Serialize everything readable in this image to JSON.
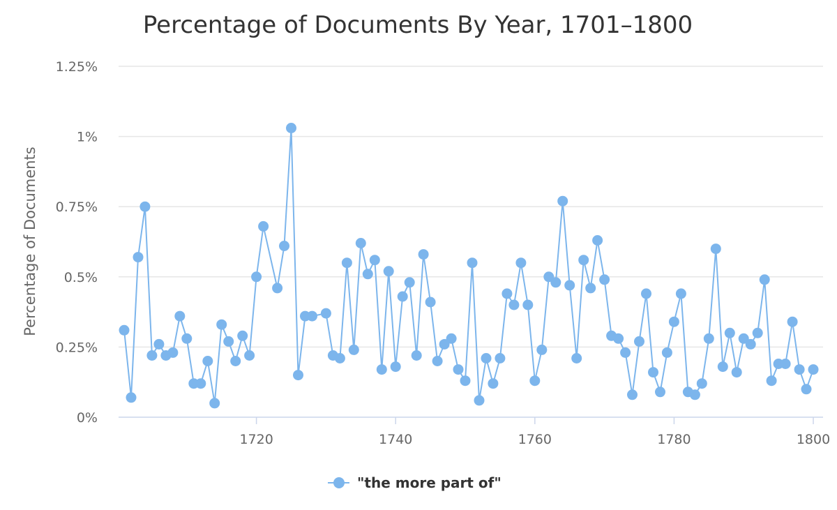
{
  "chart_data": {
    "type": "line",
    "title": "Percentage of Documents By Year, 1701–1800",
    "ylabel": "Percentage of Documents",
    "xlabel": "",
    "ylim": [
      0,
      1.25
    ],
    "xlim": [
      1701,
      1800
    ],
    "y_ticks": [
      "0%",
      "0.25%",
      "0.5%",
      "0.75%",
      "1%",
      "1.25%"
    ],
    "x_ticks": [
      "1720",
      "1740",
      "1760",
      "1780",
      "1800"
    ],
    "grid": true,
    "legend_position": "bottom",
    "line_color": "#7cb5ec",
    "series": [
      {
        "name": "\"the more part of\"",
        "x": [
          1701,
          1702,
          1703,
          1704,
          1705,
          1706,
          1707,
          1708,
          1709,
          1710,
          1711,
          1712,
          1713,
          1714,
          1715,
          1716,
          1717,
          1718,
          1719,
          1720,
          1721,
          1723,
          1724,
          1725,
          1726,
          1727,
          1728,
          1730,
          1731,
          1732,
          1733,
          1734,
          1735,
          1736,
          1737,
          1738,
          1739,
          1740,
          1741,
          1742,
          1743,
          1744,
          1745,
          1746,
          1747,
          1748,
          1749,
          1750,
          1751,
          1752,
          1753,
          1754,
          1755,
          1756,
          1757,
          1758,
          1759,
          1760,
          1761,
          1762,
          1763,
          1764,
          1765,
          1766,
          1767,
          1768,
          1769,
          1770,
          1771,
          1772,
          1773,
          1774,
          1775,
          1776,
          1777,
          1778,
          1779,
          1780,
          1781,
          1782,
          1783,
          1784,
          1785,
          1786,
          1787,
          1788,
          1789,
          1790,
          1791,
          1792,
          1793,
          1794,
          1795,
          1796,
          1797,
          1798,
          1799,
          1800
        ],
        "values": [
          0.31,
          0.07,
          0.57,
          0.75,
          0.22,
          0.26,
          0.22,
          0.23,
          0.36,
          0.28,
          0.12,
          0.12,
          0.2,
          0.05,
          0.33,
          0.27,
          0.2,
          0.29,
          0.22,
          0.5,
          0.68,
          0.46,
          0.61,
          1.03,
          0.15,
          0.36,
          0.36,
          0.37,
          0.22,
          0.21,
          0.55,
          0.24,
          0.62,
          0.51,
          0.56,
          0.17,
          0.52,
          0.18,
          0.43,
          0.48,
          0.22,
          0.58,
          0.41,
          0.2,
          0.26,
          0.28,
          0.17,
          0.13,
          0.55,
          0.06,
          0.21,
          0.12,
          0.21,
          0.44,
          0.4,
          0.55,
          0.4,
          0.13,
          0.24,
          0.5,
          0.48,
          0.77,
          0.47,
          0.21,
          0.56,
          0.46,
          0.63,
          0.49,
          0.29,
          0.28,
          0.23,
          0.08,
          0.27,
          0.44,
          0.16,
          0.09,
          0.23,
          0.34,
          0.44,
          0.09,
          0.08,
          0.12,
          0.28,
          0.6,
          0.18,
          0.3,
          0.16,
          0.28,
          0.26,
          0.3,
          0.49,
          0.13,
          0.19,
          0.19,
          0.34,
          0.17,
          0.1,
          0.17
        ]
      }
    ]
  }
}
